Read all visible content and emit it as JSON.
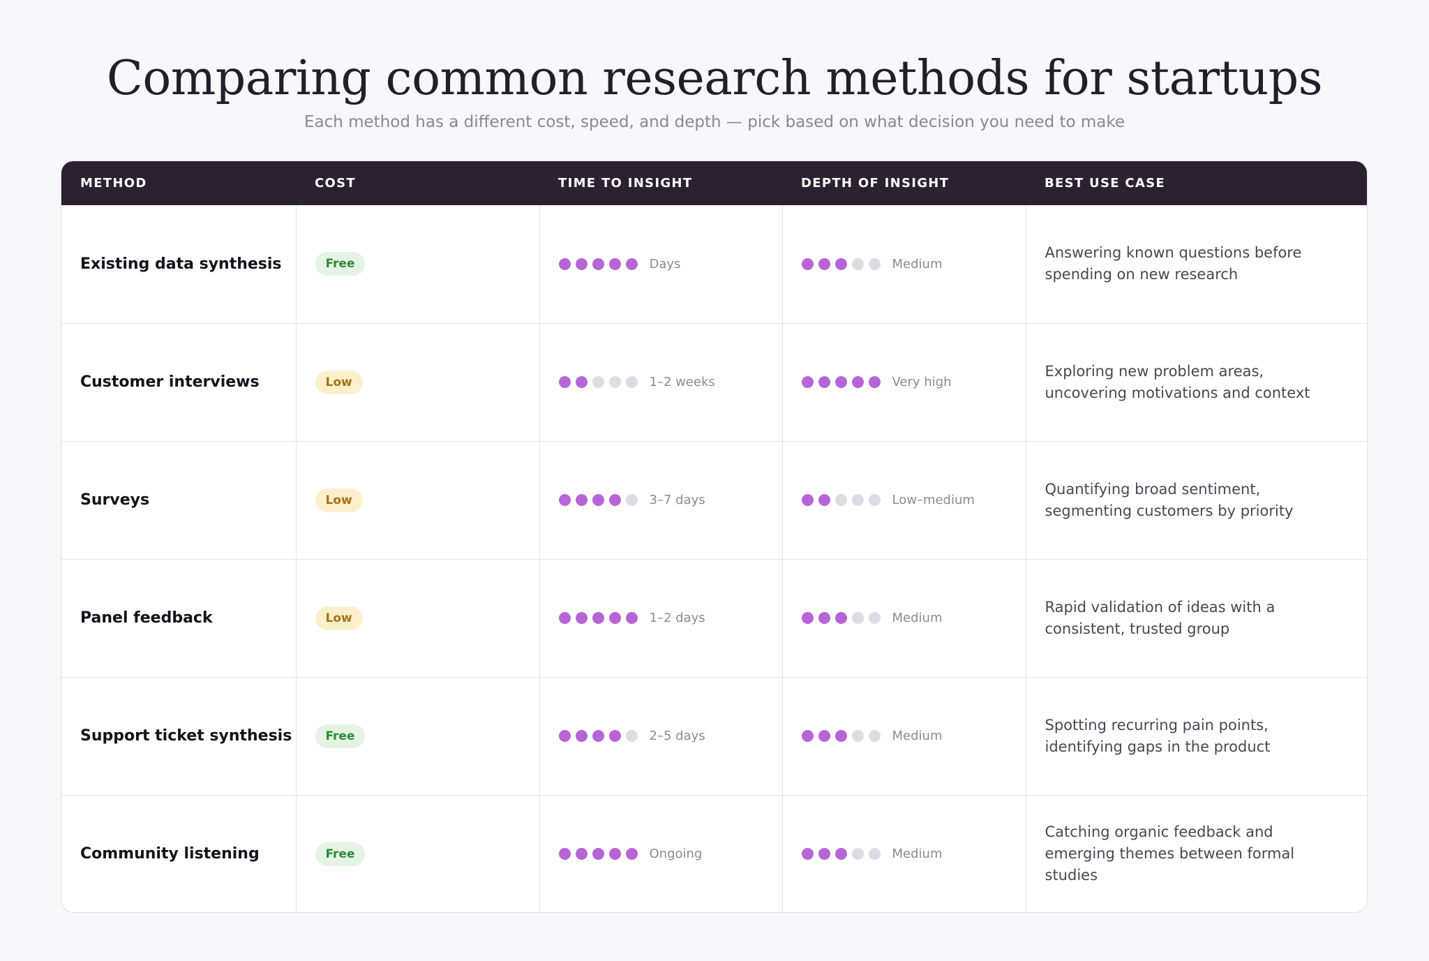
{
  "title": "Comparing common research methods for startups",
  "subtitle": "Each method has a different cost, speed, and depth — pick based on what decision you need to make",
  "colors": {
    "header_bg": "#2c2130",
    "dot_on": "#b764d6",
    "dot_off": "#dedbe4",
    "free_bg": "#e5f3e4",
    "free_text": "#2f8a35",
    "low_bg": "#fcf0cc",
    "low_text": "#a67212"
  },
  "table": {
    "headers": [
      "METHOD",
      "COST",
      "TIME TO INSIGHT",
      "DEPTH OF INSIGHT",
      "BEST USE CASE"
    ],
    "rows": [
      {
        "method": "Existing data synthesis",
        "cost": "Free",
        "cost_level": "free",
        "time_rating": 5,
        "time_label": "Days",
        "depth_rating": 3,
        "depth_label": "Medium",
        "use_case": "Answering known questions before spending on new research"
      },
      {
        "method": "Customer interviews",
        "cost": "Low",
        "cost_level": "low",
        "time_rating": 2,
        "time_label": "1–2 weeks",
        "depth_rating": 5,
        "depth_label": "Very high",
        "use_case": "Exploring new problem areas, uncovering motivations and context"
      },
      {
        "method": "Surveys",
        "cost": "Low",
        "cost_level": "low",
        "time_rating": 4,
        "time_label": "3–7 days",
        "depth_rating": 2,
        "depth_label": "Low–medium",
        "use_case": "Quantifying broad sentiment, segmenting customers by priority"
      },
      {
        "method": "Panel feedback",
        "cost": "Low",
        "cost_level": "low",
        "time_rating": 5,
        "time_label": "1–2 days",
        "depth_rating": 3,
        "depth_label": "Medium",
        "use_case": "Rapid validation of ideas with a consistent, trusted group"
      },
      {
        "method": "Support ticket synthesis",
        "cost": "Free",
        "cost_level": "free",
        "time_rating": 4,
        "time_label": "2–5 days",
        "depth_rating": 3,
        "depth_label": "Medium",
        "use_case": "Spotting recurring pain points, identifying gaps in the product"
      },
      {
        "method": "Community listening",
        "cost": "Free",
        "cost_level": "free",
        "time_rating": 5,
        "time_label": "Ongoing",
        "depth_rating": 3,
        "depth_label": "Medium",
        "use_case": "Catching organic feedback and emerging themes between formal studies"
      }
    ]
  }
}
